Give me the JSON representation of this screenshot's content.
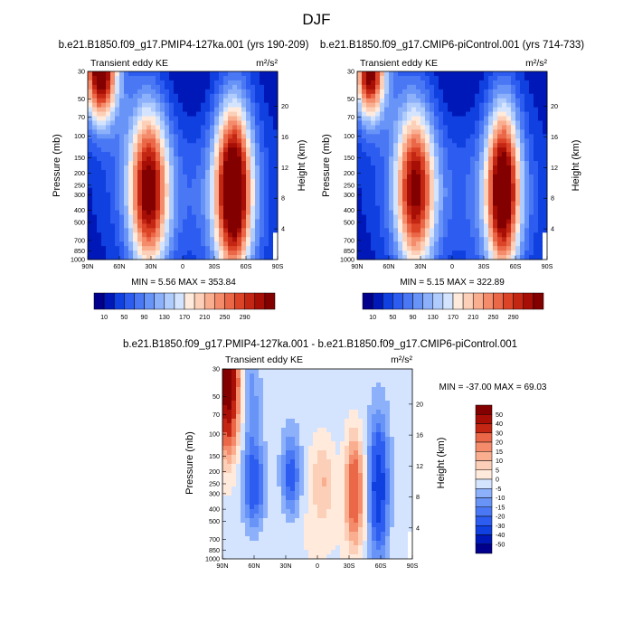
{
  "figure_title": "DJF",
  "colors": {
    "cmap_abs": [
      "#00008c",
      "#0018b8",
      "#1040e0",
      "#2c5cf0",
      "#4a78f4",
      "#6894f8",
      "#8cb0fa",
      "#b0ccfc",
      "#d4e4fe",
      "#ffeadc",
      "#fcd0b8",
      "#faae90",
      "#f48c6c",
      "#ea6848",
      "#dc4428",
      "#c42614",
      "#a60e06",
      "#820000"
    ],
    "cmap_diff": [
      "#00008c",
      "#0018b8",
      "#1040e0",
      "#2c5cf0",
      "#4a78f4",
      "#6894f8",
      "#8cb0fa",
      "#b0ccfc",
      "#d4e4fe",
      "#ffeadc",
      "#fcd0b8",
      "#faae90",
      "#f48c6c",
      "#ea6848",
      "#dc4428",
      "#c42614",
      "#a60e06",
      "#820000"
    ]
  },
  "chart_data": [
    {
      "type": "heatmap",
      "title": "b.e21.B1850.f09_g17.PMIP4-127ka.001 (yrs 190-209)",
      "left_label": "Transient eddy KE",
      "units": "m²/s²",
      "ylabel": "Pressure (mb)",
      "ylabel_right": "Height (km)",
      "x_ticks": [
        "90N",
        "60N",
        "30N",
        "0",
        "30S",
        "60S",
        "90S"
      ],
      "x_values": [
        90,
        60,
        30,
        0,
        -30,
        -60,
        -90
      ],
      "y_ticks": [
        30,
        50,
        70,
        100,
        150,
        200,
        250,
        300,
        400,
        500,
        700,
        850,
        1000
      ],
      "y_right_ticks": [
        4,
        8,
        12,
        16,
        20
      ],
      "xlim": [
        90,
        -90
      ],
      "ylim": [
        30,
        1000
      ],
      "stats": "MIN =   5.56  MAX = 353.84",
      "colorbar_levels": [
        10,
        30,
        50,
        70,
        90,
        110,
        130,
        150,
        170,
        190,
        210,
        230,
        250,
        270,
        290,
        310,
        330
      ],
      "colorbar_labels": [
        "10",
        "50",
        "90",
        "130",
        "170",
        "210",
        "250",
        "290"
      ],
      "features": [
        {
          "lat": -48,
          "p": 270,
          "peak": 340,
          "lat_width": 12,
          "logp_width": 0.5
        },
        {
          "lat": 32,
          "p": 270,
          "peak": 290,
          "lat_width": 13,
          "logp_width": 0.48
        },
        {
          "lat": 78,
          "p": 30,
          "peak": 330,
          "lat_width": 11,
          "logp_width": 0.28
        }
      ]
    },
    {
      "type": "heatmap",
      "title": "b.e21.B1850.f09_g17.CMIP6-piControl.001 (yrs 714-733)",
      "left_label": "Transient eddy KE",
      "units": "m²/s²",
      "ylabel": "Pressure (mb)",
      "ylabel_right": "Height (km)",
      "x_ticks": [
        "90N",
        "60N",
        "30N",
        "0",
        "30S",
        "60S",
        "90S"
      ],
      "x_values": [
        90,
        60,
        30,
        0,
        -30,
        -60,
        -90
      ],
      "y_ticks": [
        30,
        50,
        70,
        100,
        150,
        200,
        250,
        300,
        400,
        500,
        700,
        850,
        1000
      ],
      "y_right_ticks": [
        4,
        8,
        12,
        16,
        20
      ],
      "xlim": [
        90,
        -90
      ],
      "ylim": [
        30,
        1000
      ],
      "stats": "MIN =   5.15  MAX = 322.89",
      "colorbar_levels": [
        10,
        30,
        50,
        70,
        90,
        110,
        130,
        150,
        170,
        190,
        210,
        230,
        250,
        270,
        290,
        310,
        330
      ],
      "colorbar_labels": [
        "10",
        "50",
        "90",
        "130",
        "170",
        "210",
        "250",
        "290"
      ],
      "features": [
        {
          "lat": -48,
          "p": 270,
          "peak": 320,
          "lat_width": 11,
          "logp_width": 0.48
        },
        {
          "lat": 35,
          "p": 270,
          "peak": 275,
          "lat_width": 13,
          "logp_width": 0.48
        },
        {
          "lat": 78,
          "p": 30,
          "peak": 305,
          "lat_width": 10,
          "logp_width": 0.26
        }
      ]
    },
    {
      "type": "heatmap",
      "title": "b.e21.B1850.f09_g17.PMIP4-127ka.001 - b.e21.B1850.f09_g17.CMIP6-piControl.001",
      "left_label": "Transient eddy KE",
      "units": "m²/s²",
      "ylabel": "Pressure (mb)",
      "ylabel_right": "Height (km)",
      "x_ticks": [
        "90N",
        "60N",
        "30N",
        "0",
        "30S",
        "60S",
        "90S"
      ],
      "x_values": [
        90,
        60,
        30,
        0,
        -30,
        -60,
        -90
      ],
      "y_ticks": [
        30,
        50,
        70,
        100,
        150,
        200,
        250,
        300,
        400,
        500,
        700,
        850,
        1000
      ],
      "y_right_ticks": [
        4,
        8,
        12,
        16,
        20
      ],
      "xlim": [
        90,
        -90
      ],
      "ylim": [
        30,
        1000
      ],
      "stats": "MIN = -37.00  MAX =  69.03",
      "colorbar_levels": [
        -50,
        -40,
        -30,
        -20,
        -15,
        -10,
        -5,
        0,
        5,
        10,
        15,
        20,
        30,
        40,
        50
      ],
      "colorbar_labels": [
        "50",
        "40",
        "30",
        "20",
        "15",
        "10",
        "5",
        "0",
        "-5",
        "-10",
        "-15",
        "-20",
        "-30",
        "-40",
        "-50"
      ],
      "features": [
        {
          "lat": 85,
          "p": 40,
          "peak": 65,
          "lat_width": 7,
          "logp_width": 0.35
        },
        {
          "lat": -35,
          "p": 280,
          "peak": 32,
          "lat_width": 6,
          "logp_width": 0.3
        },
        {
          "lat": -58,
          "p": 270,
          "peak": -37,
          "lat_width": 6,
          "logp_width": 0.35
        },
        {
          "lat": 60,
          "p": 260,
          "peak": -25,
          "lat_width": 7,
          "logp_width": 0.22
        },
        {
          "lat": 25,
          "p": 220,
          "peak": -22,
          "lat_width": 6,
          "logp_width": 0.22
        },
        {
          "lat": 62,
          "p": 60,
          "peak": -10,
          "lat_width": 5,
          "logp_width": 0.35
        },
        {
          "lat": -5,
          "p": 230,
          "peak": 12,
          "lat_width": 8,
          "logp_width": 0.25
        },
        {
          "lat": 10,
          "p": 700,
          "peak": 3,
          "lat_width": 45,
          "logp_width": 0.4
        }
      ]
    }
  ]
}
